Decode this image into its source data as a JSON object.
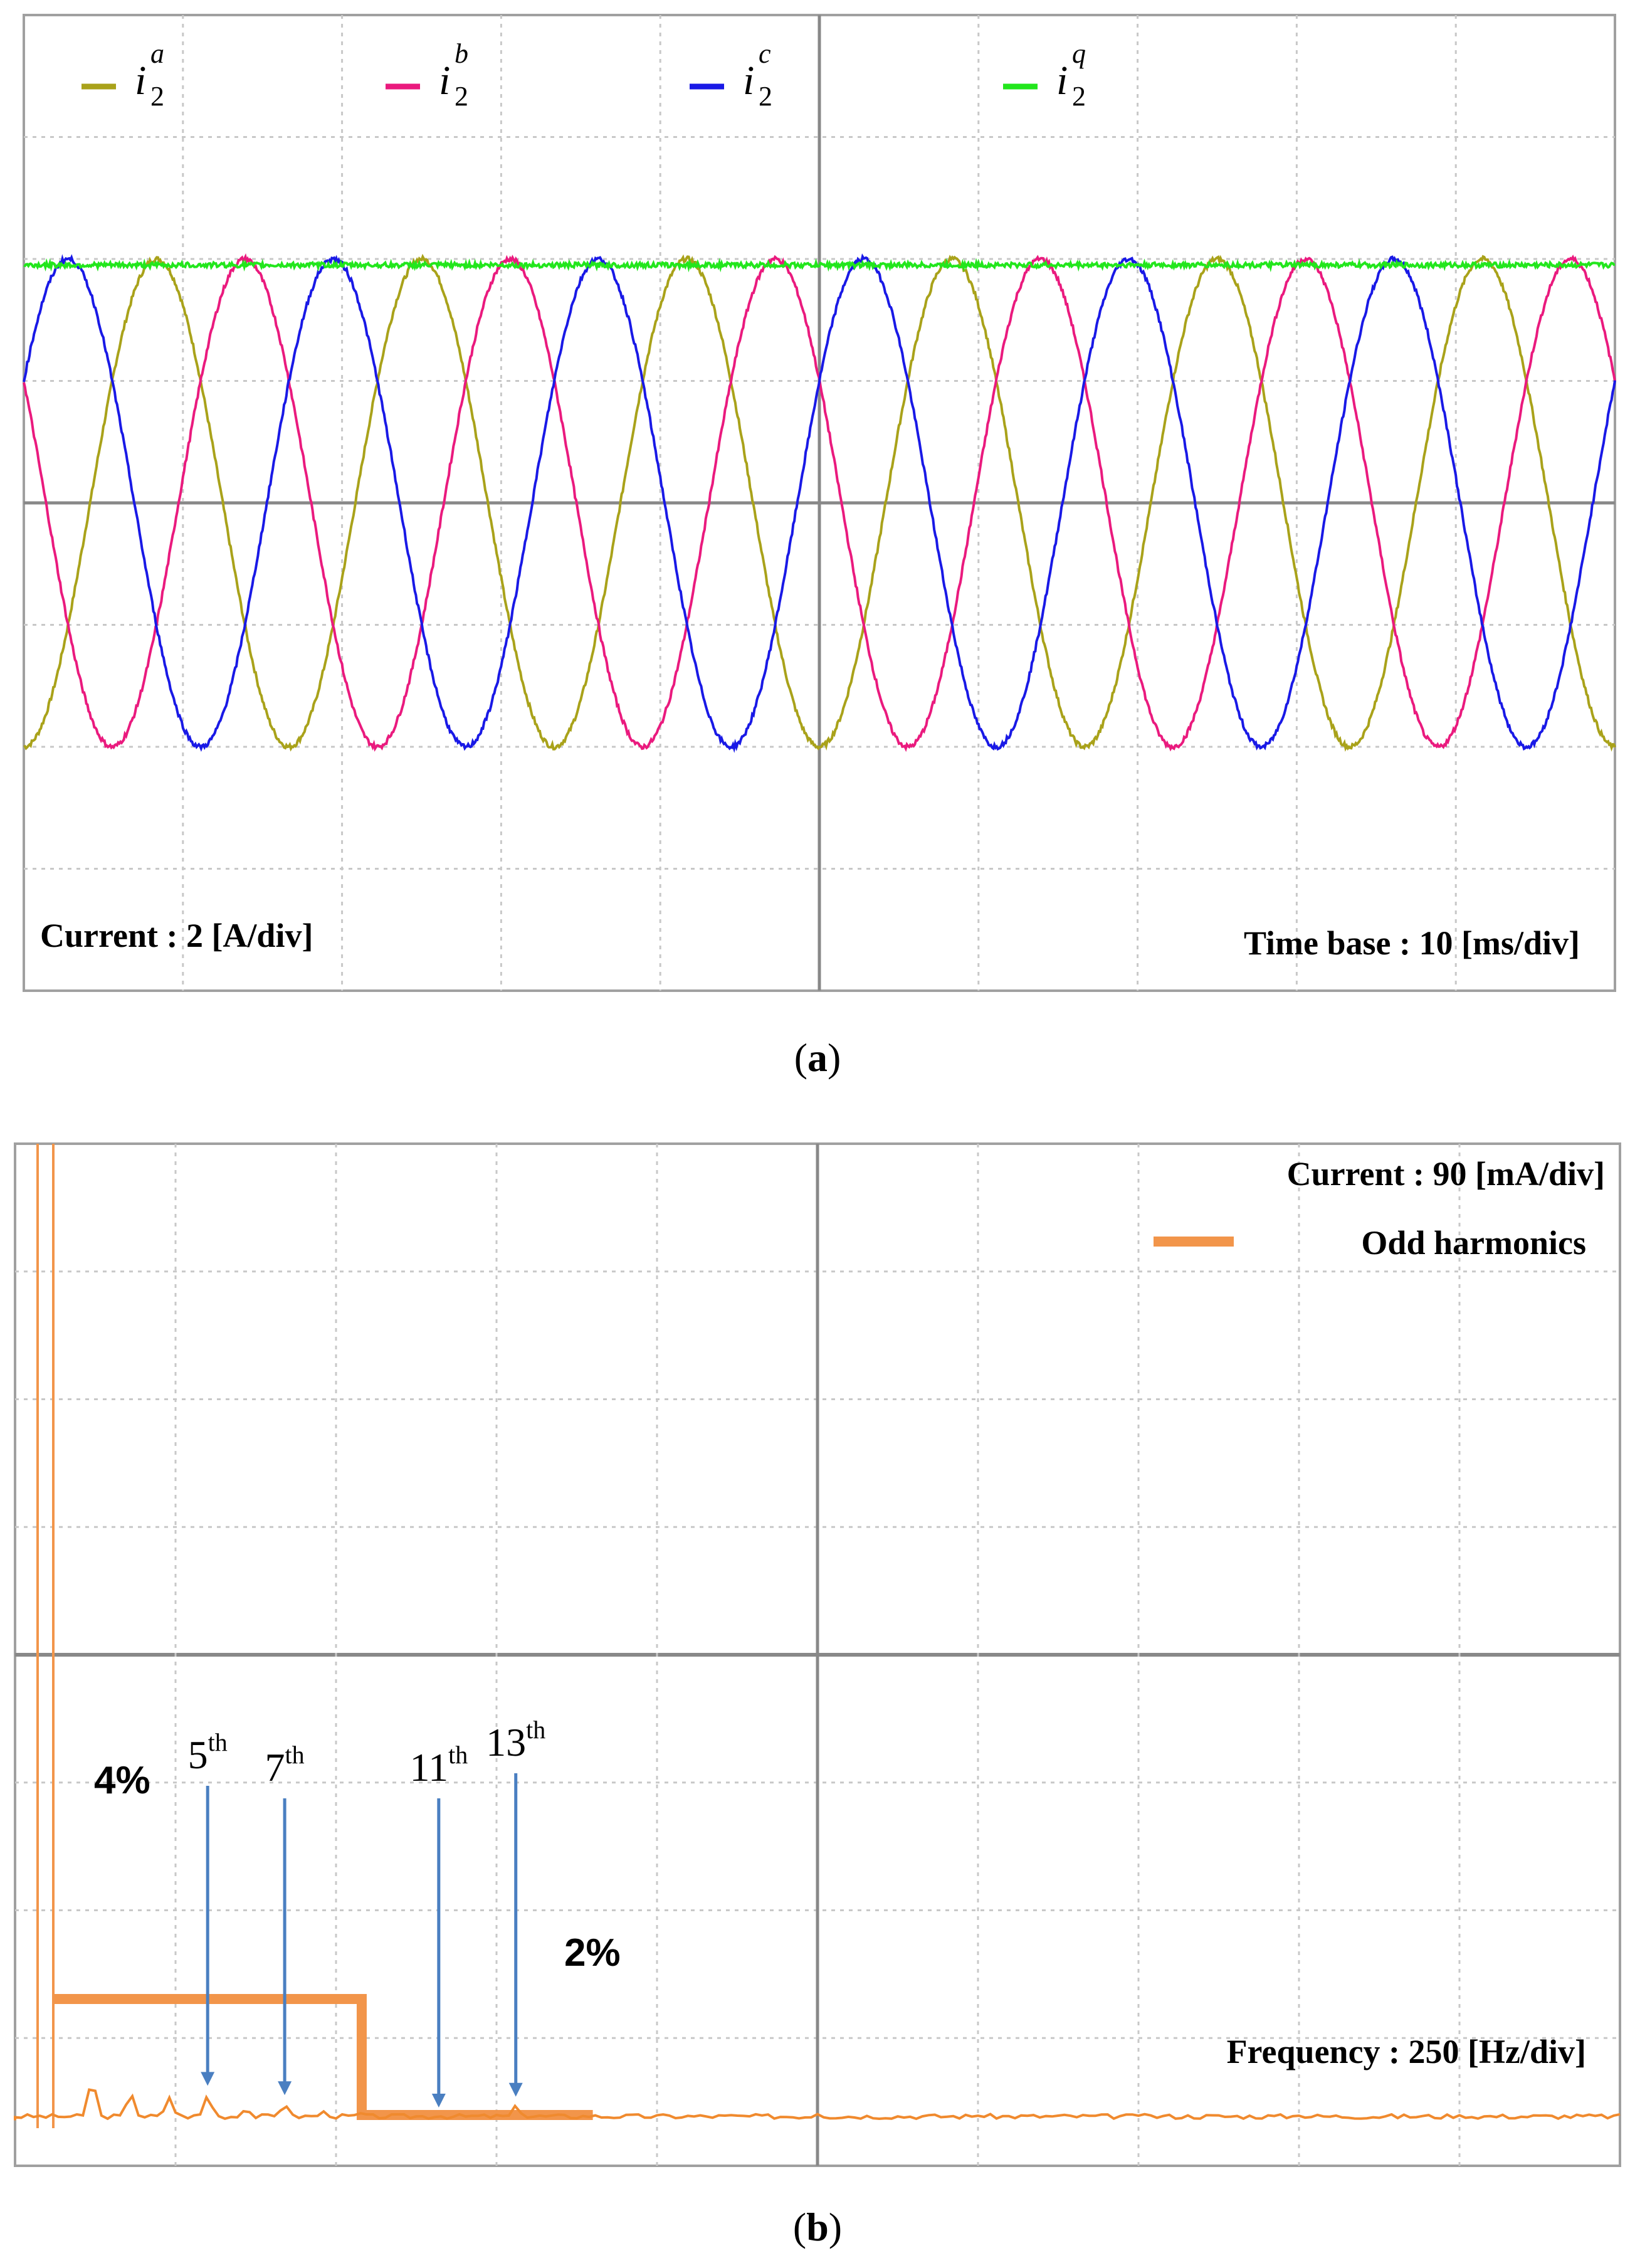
{
  "panel_a": {
    "caption": {
      "open": "(",
      "letter": "a",
      "close": ")"
    },
    "legend": [
      {
        "base": "i",
        "sub": "2",
        "sup": "a",
        "color": "#a9a21a"
      },
      {
        "base": "i",
        "sub": "2",
        "sup": "b",
        "color": "#ea1a7e"
      },
      {
        "base": "i",
        "sub": "2",
        "sup": "c",
        "color": "#1919e6"
      },
      {
        "base": "i",
        "sub": "2",
        "sup": "q",
        "color": "#22e61c"
      }
    ],
    "scale_label": "Current : 2 [A/div]",
    "timebase_label": "Time base : 10 [ms/div]",
    "chart_data": {
      "type": "line",
      "x_unit": "ms",
      "y_unit": "A",
      "x_per_div_ms": 10,
      "y_per_div_A": 2,
      "xlim_ms": [
        -50,
        50
      ],
      "ylim_A": [
        -8,
        8
      ],
      "frequency_hz": 60,
      "series": [
        {
          "name": "i2a",
          "color": "#a9a21a",
          "amplitude_A": 4.0,
          "phase_deg": -90
        },
        {
          "name": "i2b",
          "color": "#ea1a7e",
          "amplitude_A": 4.0,
          "phase_deg": -210
        },
        {
          "name": "i2c",
          "color": "#1919e6",
          "amplitude_A": 4.0,
          "phase_deg": 30
        },
        {
          "name": "i2q",
          "color": "#22e61c",
          "level_A": 3.9
        }
      ],
      "grid": true
    }
  },
  "panel_b": {
    "caption": {
      "open": "(",
      "letter": "b",
      "close": ")"
    },
    "scale_label": "Current : 90 [mA/div]",
    "legend_label": "Odd harmonics",
    "legend_color": "#f2954a",
    "freq_label": "Frequency : 250 [Hz/div]",
    "limit_high_label": "4%",
    "limit_low_label": "2%",
    "harmonics": [
      {
        "n": "5",
        "suffix": "th",
        "freq_hz": 300
      },
      {
        "n": "7",
        "suffix": "th",
        "freq_hz": 420
      },
      {
        "n": "11",
        "suffix": "th",
        "freq_hz": 660
      },
      {
        "n": "13",
        "suffix": "th",
        "freq_hz": 780
      }
    ],
    "chart_data": {
      "type": "line",
      "x_unit": "Hz",
      "y_unit": "mA",
      "x_per_div_Hz": 250,
      "y_per_div_mA": 90,
      "xlim_Hz": [
        0,
        2500
      ],
      "ylim_mA": [
        0,
        630
      ],
      "fundamental_hz": 60,
      "limit_percent": [
        {
          "from_hz": 60,
          "to_hz": 540,
          "percent": 4
        },
        {
          "from_hz": 540,
          "to_hz": 900,
          "percent": 2
        }
      ],
      "spectrum_points_hz_ma": [
        [
          120,
          28
        ],
        [
          180,
          18
        ],
        [
          240,
          14
        ],
        [
          300,
          16
        ],
        [
          360,
          7
        ],
        [
          420,
          10
        ],
        [
          480,
          5
        ],
        [
          540,
          4
        ],
        [
          600,
          3
        ],
        [
          660,
          2
        ],
        [
          720,
          2
        ],
        [
          780,
          9
        ],
        [
          840,
          2
        ],
        [
          900,
          2
        ],
        [
          1000,
          2
        ],
        [
          1250,
          3
        ],
        [
          1500,
          2
        ],
        [
          1750,
          2
        ],
        [
          2000,
          2
        ],
        [
          2250,
          2
        ],
        [
          2500,
          2
        ]
      ],
      "grid": true
    }
  }
}
